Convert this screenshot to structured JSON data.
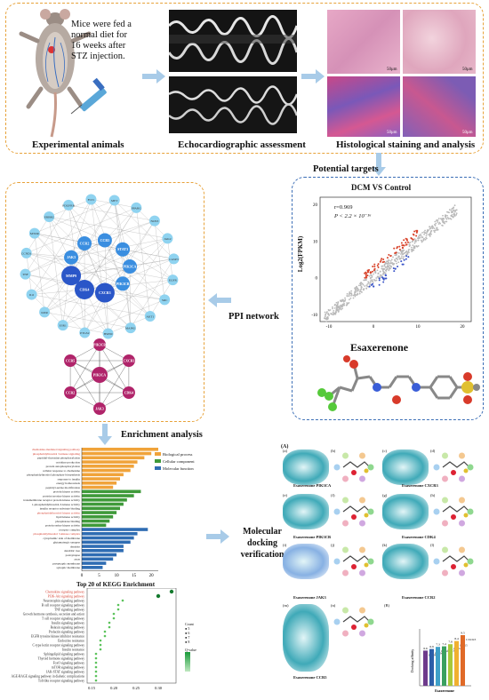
{
  "top": {
    "mouse_note": [
      "Mice were fed a",
      "normal diet for",
      "16 weeks after",
      "STZ injection."
    ],
    "captions": {
      "animals": "Experimental animals",
      "echo": "Echocardiographic assessment",
      "histo": "Histological staining and analysis"
    },
    "scale_bar": "50μm"
  },
  "targets": {
    "label": "Potential targets",
    "scatter_title": "DCM VS Control",
    "ylabel": "Log2(FPKM)",
    "r_text": "r=0.969",
    "p_text": "P < 2.2 × 10⁻¹⁶",
    "y_ticks": [
      "20",
      "10",
      "0",
      "-10"
    ],
    "x_ticks": [
      "-10",
      "0",
      "10",
      "20"
    ],
    "drug_name": "Esaxerenone"
  },
  "ppi": {
    "label": "PPI network",
    "hub_nodes": [
      "PIK3CA",
      "PIK3CB",
      "CXCR3",
      "CDK4",
      "MMP9",
      "JAK3",
      "CCR2",
      "CCR5",
      "STAT3"
    ],
    "small_nodes": [
      "EGFR",
      "SRC",
      "AKT1",
      "MAPK1",
      "HSP90",
      "PTGS2",
      "ESR1",
      "KDR",
      "IL6",
      "TNF",
      "CCND1",
      "MTOR",
      "ERBB2",
      "PDGFRB",
      "FLT1",
      "MET",
      "PPARG",
      "NOS3",
      "JAK2",
      "CASP3"
    ],
    "core_nodes": [
      "PIK3CA",
      "PIK3CB",
      "CXCR3",
      "CDK4",
      "JAK3",
      "CCR2",
      "CCR5"
    ]
  },
  "enrichment": {
    "label": "Enrichment analysis",
    "legend": [
      "Biological process",
      "Cellular component",
      "Molecular function"
    ],
    "colors": {
      "bp": "#f0a33a",
      "cc": "#3f9a3a",
      "mf": "#2f6db3",
      "highlight": "#d43a2a"
    },
    "go_terms": [
      {
        "term": "chemokine-mediated signaling pathway",
        "value": 22,
        "cat": "bp",
        "hl": true
      },
      {
        "term": "phosphatidylinositol 3-kinase signaling",
        "value": 20,
        "cat": "bp",
        "hl": true
      },
      {
        "term": "peptidyl-threonine phosphorylation",
        "value": 18,
        "cat": "bp",
        "hl": false
      },
      {
        "term": "cytokine production",
        "value": 16,
        "cat": "bp",
        "hl": false
      },
      {
        "term": "protein autophosphorylation",
        "value": 15,
        "cat": "bp",
        "hl": false
      },
      {
        "term": "cellular response to chemokine",
        "value": 14,
        "cat": "bp",
        "hl": false
      },
      {
        "term": "phosphatidylinositol phosphate biosynthesis",
        "value": 12,
        "cat": "bp",
        "hl": false
      },
      {
        "term": "response to insulin",
        "value": 11,
        "cat": "bp",
        "hl": false
      },
      {
        "term": "energy homeostasis",
        "value": 10,
        "cat": "bp",
        "hl": false
      },
      {
        "term": "peptidyl-serine modification",
        "value": 9,
        "cat": "bp",
        "hl": false
      },
      {
        "term": "protein kinase activity",
        "value": 17,
        "cat": "cc",
        "hl": false
      },
      {
        "term": "protein tyrosine kinase activity",
        "value": 15,
        "cat": "cc",
        "hl": false
      },
      {
        "term": "transmembrane receptor protein kinase activity",
        "value": 13,
        "cat": "cc",
        "hl": false
      },
      {
        "term": "1-phosphatidylinositol-3-kinase activity",
        "value": 12,
        "cat": "cc",
        "hl": false
      },
      {
        "term": "insulin receptor substrate binding",
        "value": 11,
        "cat": "cc",
        "hl": false
      },
      {
        "term": "phosphatidylinositol kinase activity",
        "value": 10,
        "cat": "cc",
        "hl": true
      },
      {
        "term": "lipid kinase activity",
        "value": 9,
        "cat": "cc",
        "hl": false
      },
      {
        "term": "phosphatase binding",
        "value": 8,
        "cat": "cc",
        "hl": false
      },
      {
        "term": "protein serine kinase activity",
        "value": 7,
        "cat": "cc",
        "hl": false
      },
      {
        "term": "receptor complex",
        "value": 19,
        "cat": "mf",
        "hl": false
      },
      {
        "term": "phosphatidylinositol 3-kinase complex",
        "value": 16,
        "cat": "mf",
        "hl": true
      },
      {
        "term": "cytoplasmic side of membrane",
        "value": 15,
        "cat": "mf",
        "hl": false
      },
      {
        "term": "glutamatergic synapse",
        "value": 14,
        "cat": "mf",
        "hl": false
      },
      {
        "term": "dendrite",
        "value": 12,
        "cat": "mf",
        "hl": false
      },
      {
        "term": "dendritic tree",
        "value": 12,
        "cat": "mf",
        "hl": false
      },
      {
        "term": "postsynapse",
        "value": 10,
        "cat": "mf",
        "hl": false
      },
      {
        "term": "axon",
        "value": 9,
        "cat": "mf",
        "hl": false
      },
      {
        "term": "presynaptic membrane",
        "value": 7,
        "cat": "mf",
        "hl": false
      },
      {
        "term": "synaptic membrane",
        "value": 6,
        "cat": "mf",
        "hl": false
      }
    ],
    "go_xticks": [
      "0",
      "5",
      "10",
      "15",
      "20"
    ],
    "kegg_title": "Top 20 of KEGG Enrichment",
    "kegg_terms": [
      {
        "term": "Chemokine signaling pathway",
        "ratio": 0.33,
        "hl": true
      },
      {
        "term": "PI3K-Akt signaling pathway",
        "ratio": 0.3,
        "hl": true
      },
      {
        "term": "Neurotrophin signaling pathway",
        "ratio": 0.22,
        "hl": false
      },
      {
        "term": "B cell receptor signaling pathway",
        "ratio": 0.21,
        "hl": false
      },
      {
        "term": "TNF signaling pathway",
        "ratio": 0.21,
        "hl": false
      },
      {
        "term": "Growth hormone synthesis, secretion and action",
        "ratio": 0.2,
        "hl": false
      },
      {
        "term": "T cell receptor signaling pathway",
        "ratio": 0.2,
        "hl": false
      },
      {
        "term": "Insulin signaling pathway",
        "ratio": 0.19,
        "hl": false
      },
      {
        "term": "Relaxin signaling pathway",
        "ratio": 0.19,
        "hl": false
      },
      {
        "term": "Prolactin signaling pathway",
        "ratio": 0.18,
        "hl": false
      },
      {
        "term": "EGFR tyrosine kinase inhibitor resistance",
        "ratio": 0.18,
        "hl": false
      },
      {
        "term": "Endocrine resistance",
        "ratio": 0.17,
        "hl": false
      },
      {
        "term": "C-type lectin receptor signaling pathway",
        "ratio": 0.17,
        "hl": false
      },
      {
        "term": "Insulin resistance",
        "ratio": 0.17,
        "hl": false
      },
      {
        "term": "Sphingolipid signaling pathway",
        "ratio": 0.16,
        "hl": false
      },
      {
        "term": "Thyroid hormone signaling pathway",
        "ratio": 0.16,
        "hl": false
      },
      {
        "term": "FoxO signaling pathway",
        "ratio": 0.16,
        "hl": false
      },
      {
        "term": "mTOR signaling pathway",
        "ratio": 0.16,
        "hl": false
      },
      {
        "term": "JAK-STAT signaling pathway",
        "ratio": 0.16,
        "hl": false
      },
      {
        "term": "AGE-RAGE signaling pathway in diabetic complications",
        "ratio": 0.16,
        "hl": false
      },
      {
        "term": "Toll-like receptor signaling pathway",
        "ratio": 0.16,
        "hl": false
      }
    ],
    "kegg_xticks": [
      "0.15",
      "0.20",
      "0.25",
      "0.30"
    ],
    "kegg_legend_count": "Count",
    "kegg_legend_count_vals": [
      "5",
      "6",
      "7",
      "8"
    ],
    "kegg_legend_padj": "Q-value"
  },
  "docking": {
    "label": "Molecular docking verification",
    "panel_letter": "(A)",
    "complexes": [
      "Esaxerenone PIK3CA",
      "Esaxerenone CXCR3",
      "Esaxerenone PIK3CB",
      "Esaxerenone CDK4",
      "Esaxerenone JAK3",
      "Esaxerenone CCR2",
      "Esaxerenone CCR5"
    ],
    "sub_letters": [
      "(a)",
      "(b)",
      "(c)",
      "(d)",
      "(e)",
      "(f)",
      "(g)",
      "(h)",
      "(i)",
      "(j)",
      "(k)",
      "(l)",
      "(m)",
      "(n)",
      "(B)"
    ],
    "energy_chart": {
      "ylabel": "Docking affinity",
      "xlabel": "Esaxerenone",
      "bars": [
        {
          "name": "PIK3CA",
          "value": 6.6,
          "color": "#6e3a8c"
        },
        {
          "name": "PIK3CB",
          "value": 6.9,
          "color": "#2c5ea8"
        },
        {
          "name": "CDK4",
          "value": 7.3,
          "color": "#3fa0c8"
        },
        {
          "name": "JAK3",
          "value": 7.4,
          "color": "#3aa060"
        },
        {
          "name": "CCR2",
          "value": 7.8,
          "color": "#a7c83a"
        },
        {
          "name": "CCR5",
          "value": 8.4,
          "color": "#f0b030"
        },
        {
          "name": "CXCR3",
          "value": 9.5,
          "color": "#e06a28"
        }
      ]
    }
  }
}
